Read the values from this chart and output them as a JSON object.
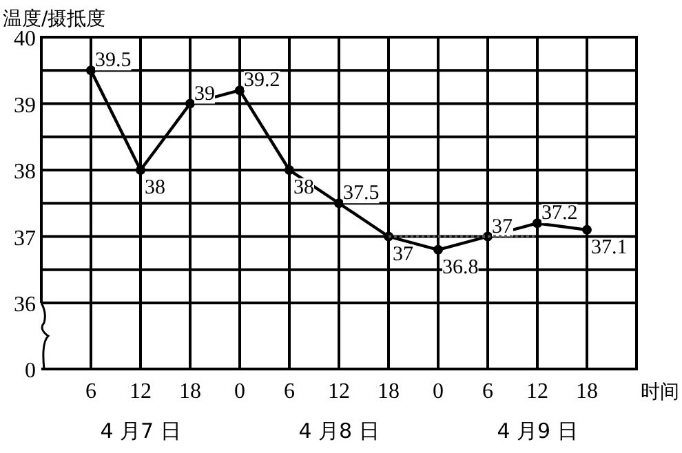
{
  "chart_data": {
    "type": "line",
    "ylabel": "温度/摄抵度",
    "xlabel": "时间",
    "categories": [
      "6",
      "12",
      "18",
      "0",
      "6",
      "12",
      "18",
      "0",
      "6",
      "12",
      "18"
    ],
    "series": [
      {
        "color": "#000000",
        "values": [
          39.5,
          38,
          39,
          39.2,
          38,
          37.5,
          37,
          36.8,
          37,
          37.2,
          37.1
        ],
        "marker": "circle",
        "line_style": "solid",
        "data_labels": true
      },
      {
        "type": "line",
        "color": "#555555",
        "values": [
          null,
          null,
          null,
          null,
          null,
          null,
          37,
          37,
          37,
          37,
          null
        ],
        "marker": "none",
        "line_style": "dotted"
      }
    ],
    "ylim": [
      36,
      40
    ],
    "yticks": [
      36,
      37,
      38,
      39,
      40
    ],
    "grid": true,
    "annotations": [
      "0",
      "4 月7 日",
      "4 月8 日",
      "4 月9 日"
    ]
  }
}
